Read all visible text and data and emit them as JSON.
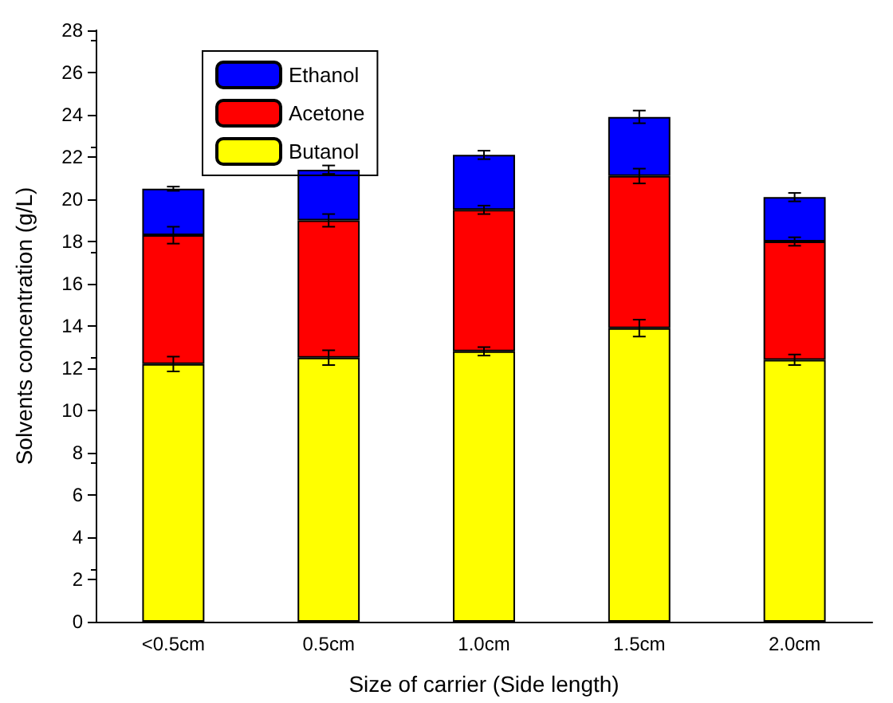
{
  "chart_data": {
    "type": "bar",
    "stacked": true,
    "xlabel": "Size of carrier (Side length)",
    "ylabel": "Solvents concentration (g/L)",
    "categories": [
      "<0.5cm",
      "0.5cm",
      "1.0cm",
      "1.5cm",
      "2.0cm"
    ],
    "series": [
      {
        "name": "Butanol",
        "color": "#ffff00",
        "values": [
          12.2,
          12.5,
          12.8,
          13.9,
          12.4
        ],
        "errors": [
          0.35,
          0.35,
          0.2,
          0.4,
          0.25
        ]
      },
      {
        "name": "Acetone",
        "color": "#ff0000",
        "values": [
          6.1,
          6.5,
          6.7,
          7.2,
          5.6
        ],
        "errors": [
          0.4,
          0.3,
          0.2,
          0.35,
          0.2
        ]
      },
      {
        "name": "Ethanol",
        "color": "#0000ff",
        "values": [
          2.2,
          2.4,
          2.6,
          2.8,
          2.1
        ],
        "errors": [
          0.1,
          0.2,
          0.2,
          0.3,
          0.2
        ]
      }
    ],
    "ylim": [
      0,
      28
    ],
    "yticks": [
      0,
      2,
      4,
      6,
      8,
      10,
      12,
      14,
      16,
      18,
      20,
      22,
      24,
      26,
      28
    ],
    "legend": "top left",
    "grid": false
  }
}
